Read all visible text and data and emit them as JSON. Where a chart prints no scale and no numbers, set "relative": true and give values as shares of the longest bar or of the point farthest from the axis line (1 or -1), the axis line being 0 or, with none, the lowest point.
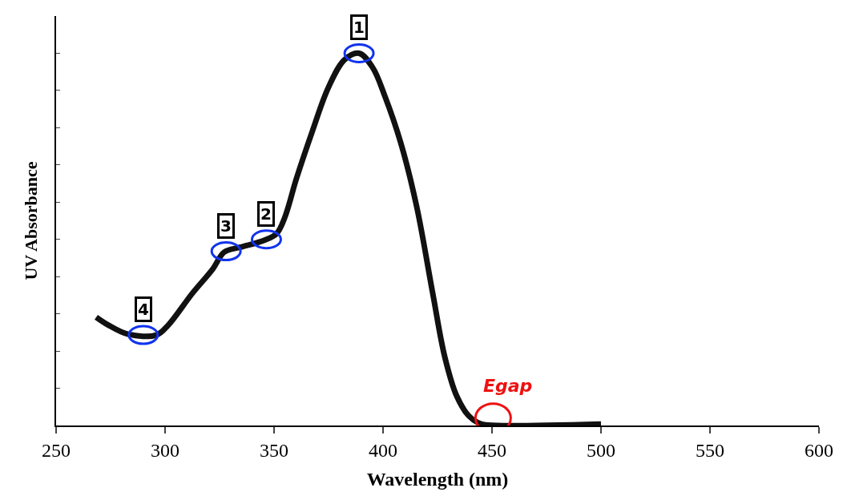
{
  "chart_data": {
    "type": "line",
    "xlabel": "Wavelength (nm)",
    "ylabel": "UV Absorbance",
    "relative": true,
    "xlim": [
      250,
      600
    ],
    "xticks": [
      250,
      300,
      350,
      400,
      450,
      500,
      550,
      600
    ],
    "marker": "none",
    "line_style": "solid",
    "x": [
      268.4,
      273.9,
      283.1,
      296.0,
      301.5,
      312.5,
      321.7,
      327.2,
      334.6,
      345.6,
      351.1,
      354.8,
      360.3,
      367.6,
      375.0,
      382.4,
      389.0,
      395.2,
      400.7,
      408.1,
      415.4,
      422.8,
      428.3,
      433.8,
      439.3,
      444.9,
      452.2,
      500
    ],
    "series": [
      {
        "color": "#111111",
        "values": [
          0.291,
          0.27,
          0.245,
          0.243,
          0.27,
          0.355,
          0.419,
          0.466,
          0.479,
          0.498,
          0.515,
          0.557,
          0.664,
          0.791,
          0.909,
          0.983,
          1,
          0.962,
          0.887,
          0.76,
          0.589,
          0.355,
          0.185,
          0.079,
          0.026,
          0.004,
          0,
          0.004
        ]
      }
    ],
    "annotations": [
      {
        "text": "1",
        "x": 389.0,
        "y": 1
      },
      {
        "text": "2",
        "x": 346.5,
        "y": 0.5
      },
      {
        "text": "3",
        "x": 328.0,
        "y": 0.468
      },
      {
        "text": "4",
        "x": 290.0,
        "y": 0.243
      },
      {
        "text": "Egap",
        "x": 450.5,
        "y": 0.02
      }
    ]
  }
}
